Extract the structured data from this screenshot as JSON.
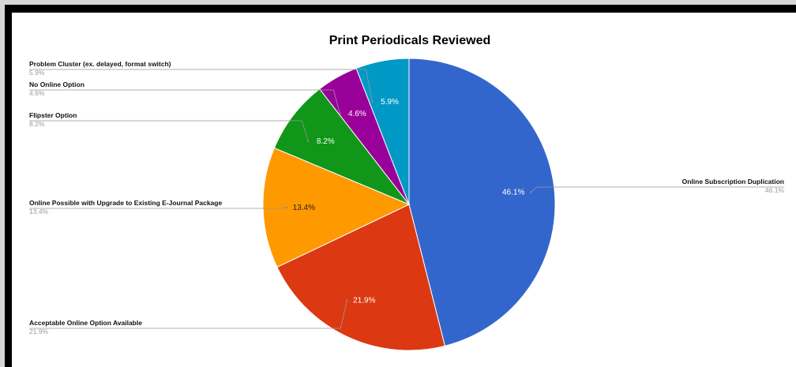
{
  "chart_data": {
    "type": "pie",
    "title": "Print Periodicals Reviewed",
    "slices": [
      {
        "label": "Online Subscription Duplication",
        "value": 46.1,
        "pct_label": "46.1%",
        "color": "#3366cc"
      },
      {
        "label": "Acceptable Online Option Available",
        "value": 21.9,
        "pct_label": "21.9%",
        "color": "#dc3912"
      },
      {
        "label": "Online Possible with Upgrade to Existing E-Journal Package",
        "value": 13.4,
        "pct_label": "13.4%",
        "color": "#ff9900"
      },
      {
        "label": "Flipster Option",
        "value": 8.2,
        "pct_label": "8.2%",
        "color": "#109618"
      },
      {
        "label": "No Online Option",
        "value": 4.6,
        "pct_label": "4.6%",
        "color": "#990099"
      },
      {
        "label": "Problem Cluster (ex. delayed, format switch)",
        "value": 5.9,
        "pct_label": "5.9%",
        "color": "#0099c6"
      }
    ],
    "legend": "labeled-leader-lines"
  }
}
